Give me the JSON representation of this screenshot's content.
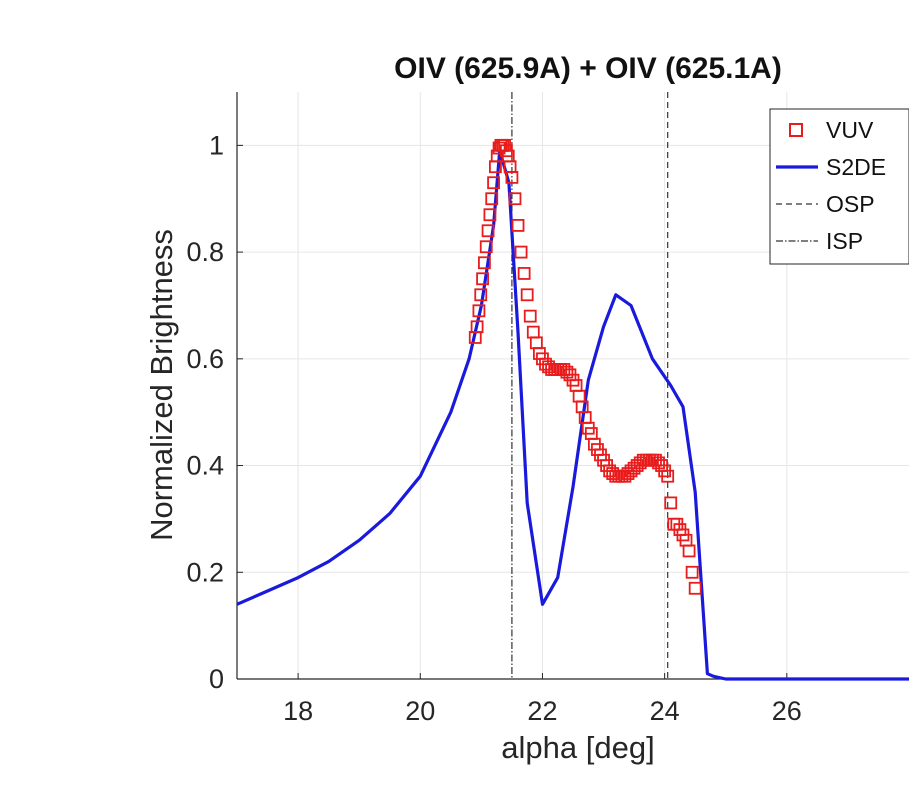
{
  "chart_data": {
    "type": "line",
    "title": "OIV (625.9A) + OIV (625.1A)",
    "xlabel": "alpha [deg]",
    "ylabel": "Normalized Brightness",
    "xlim": [
      17,
      28
    ],
    "ylim": [
      0,
      1.1
    ],
    "xticks": [
      18,
      20,
      22,
      24,
      26
    ],
    "xtick_labels": [
      "18",
      "20",
      "22",
      "24",
      "26"
    ],
    "yticks": [
      0,
      0.2,
      0.4,
      0.6,
      0.8,
      1
    ],
    "ytick_labels": [
      "0",
      "0.2",
      "0.4",
      "0.6",
      "0.8",
      "1"
    ],
    "grid": true,
    "legend_position": "top-right",
    "series": [
      {
        "name": "VUV",
        "style": "square-markers",
        "color": "#e81c1c",
        "x": [
          20.9,
          20.93,
          20.96,
          20.99,
          21.02,
          21.05,
          21.08,
          21.11,
          21.14,
          21.17,
          21.2,
          21.23,
          21.26,
          21.29,
          21.32,
          21.35,
          21.38,
          21.41,
          21.44,
          21.47,
          21.5,
          21.55,
          21.6,
          21.65,
          21.7,
          21.75,
          21.8,
          21.85,
          21.9,
          21.95,
          22.0,
          22.05,
          22.1,
          22.15,
          22.2,
          22.25,
          22.3,
          22.35,
          22.4,
          22.45,
          22.5,
          22.55,
          22.6,
          22.65,
          22.7,
          22.75,
          22.8,
          22.85,
          22.9,
          22.95,
          23.0,
          23.05,
          23.1,
          23.15,
          23.2,
          23.25,
          23.3,
          23.35,
          23.4,
          23.45,
          23.5,
          23.55,
          23.6,
          23.65,
          23.7,
          23.75,
          23.8,
          23.85,
          23.9,
          23.95,
          24.0,
          24.05,
          24.1,
          24.15,
          24.2,
          24.25,
          24.3,
          24.35,
          24.4,
          24.45,
          24.5
        ],
        "y": [
          0.64,
          0.66,
          0.69,
          0.72,
          0.75,
          0.78,
          0.81,
          0.84,
          0.87,
          0.9,
          0.93,
          0.96,
          0.98,
          0.995,
          1.0,
          1.0,
          1.0,
          0.99,
          0.98,
          0.96,
          0.94,
          0.9,
          0.85,
          0.8,
          0.76,
          0.72,
          0.68,
          0.65,
          0.63,
          0.61,
          0.6,
          0.59,
          0.585,
          0.58,
          0.58,
          0.58,
          0.58,
          0.58,
          0.575,
          0.57,
          0.56,
          0.55,
          0.53,
          0.51,
          0.49,
          0.47,
          0.46,
          0.44,
          0.43,
          0.42,
          0.41,
          0.4,
          0.39,
          0.385,
          0.38,
          0.38,
          0.38,
          0.38,
          0.385,
          0.39,
          0.395,
          0.4,
          0.405,
          0.41,
          0.41,
          0.41,
          0.41,
          0.41,
          0.405,
          0.4,
          0.39,
          0.38,
          0.33,
          0.29,
          0.29,
          0.28,
          0.27,
          0.26,
          0.24,
          0.2,
          0.17
        ]
      },
      {
        "name": "S2DE",
        "style": "solid-line",
        "color": "#1a1adc",
        "x": [
          17.0,
          17.5,
          18.0,
          18.5,
          19.0,
          19.5,
          20.0,
          20.5,
          20.8,
          21.0,
          21.2,
          21.3,
          21.45,
          21.6,
          21.75,
          22.0,
          22.25,
          22.5,
          22.75,
          23.0,
          23.2,
          23.45,
          23.8,
          24.1,
          24.3,
          24.5,
          24.7,
          24.8,
          25.0,
          25.5,
          26.0,
          27.0,
          28.0
        ],
        "y": [
          0.14,
          0.165,
          0.19,
          0.22,
          0.26,
          0.31,
          0.38,
          0.5,
          0.6,
          0.7,
          0.85,
          0.99,
          0.93,
          0.65,
          0.33,
          0.14,
          0.19,
          0.36,
          0.56,
          0.66,
          0.72,
          0.7,
          0.6,
          0.55,
          0.51,
          0.35,
          0.01,
          0.005,
          0.0,
          0.0,
          0.0,
          0.0,
          0.0
        ]
      },
      {
        "name": "OSP",
        "style": "dashed-vertical",
        "color": "#333333",
        "x_position": 24.05
      },
      {
        "name": "ISP",
        "style": "dashdot-vertical",
        "color": "#333333",
        "x_position": 21.5
      }
    ]
  }
}
